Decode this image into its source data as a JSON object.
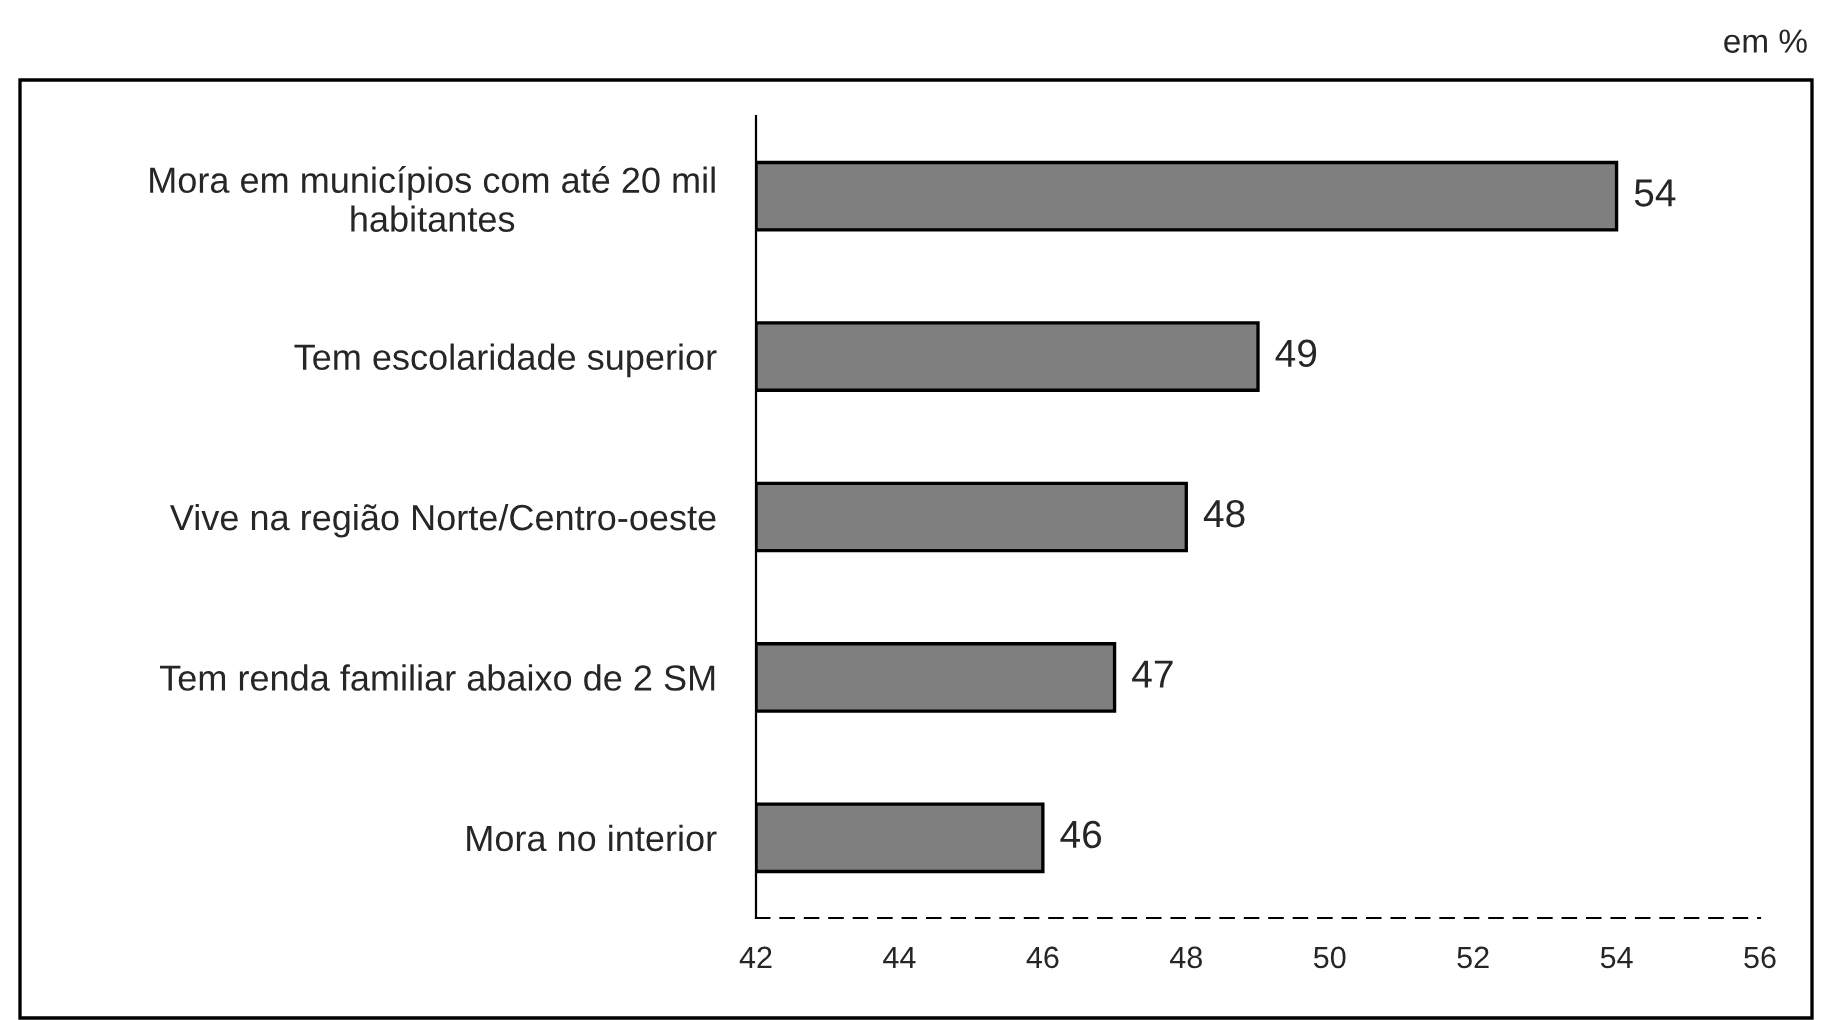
{
  "chart_data": {
    "type": "bar",
    "orientation": "horizontal",
    "categories": [
      "Mora em municípios com até 20 mil\nhabitantes",
      "Tem escolaridade superior",
      "Vive na região Norte/Centro-oeste",
      "Tem renda familiar abaixo de 2 SM",
      "Mora no interior"
    ],
    "values": [
      54,
      49,
      48,
      47,
      46
    ],
    "color": "#7f7f7f",
    "xlim": [
      42,
      56
    ],
    "xticks": [
      42,
      44,
      46,
      48,
      50,
      52,
      54,
      56
    ],
    "data_labels": true,
    "grid": false,
    "legend": false,
    "annotations": [
      "em %"
    ]
  }
}
